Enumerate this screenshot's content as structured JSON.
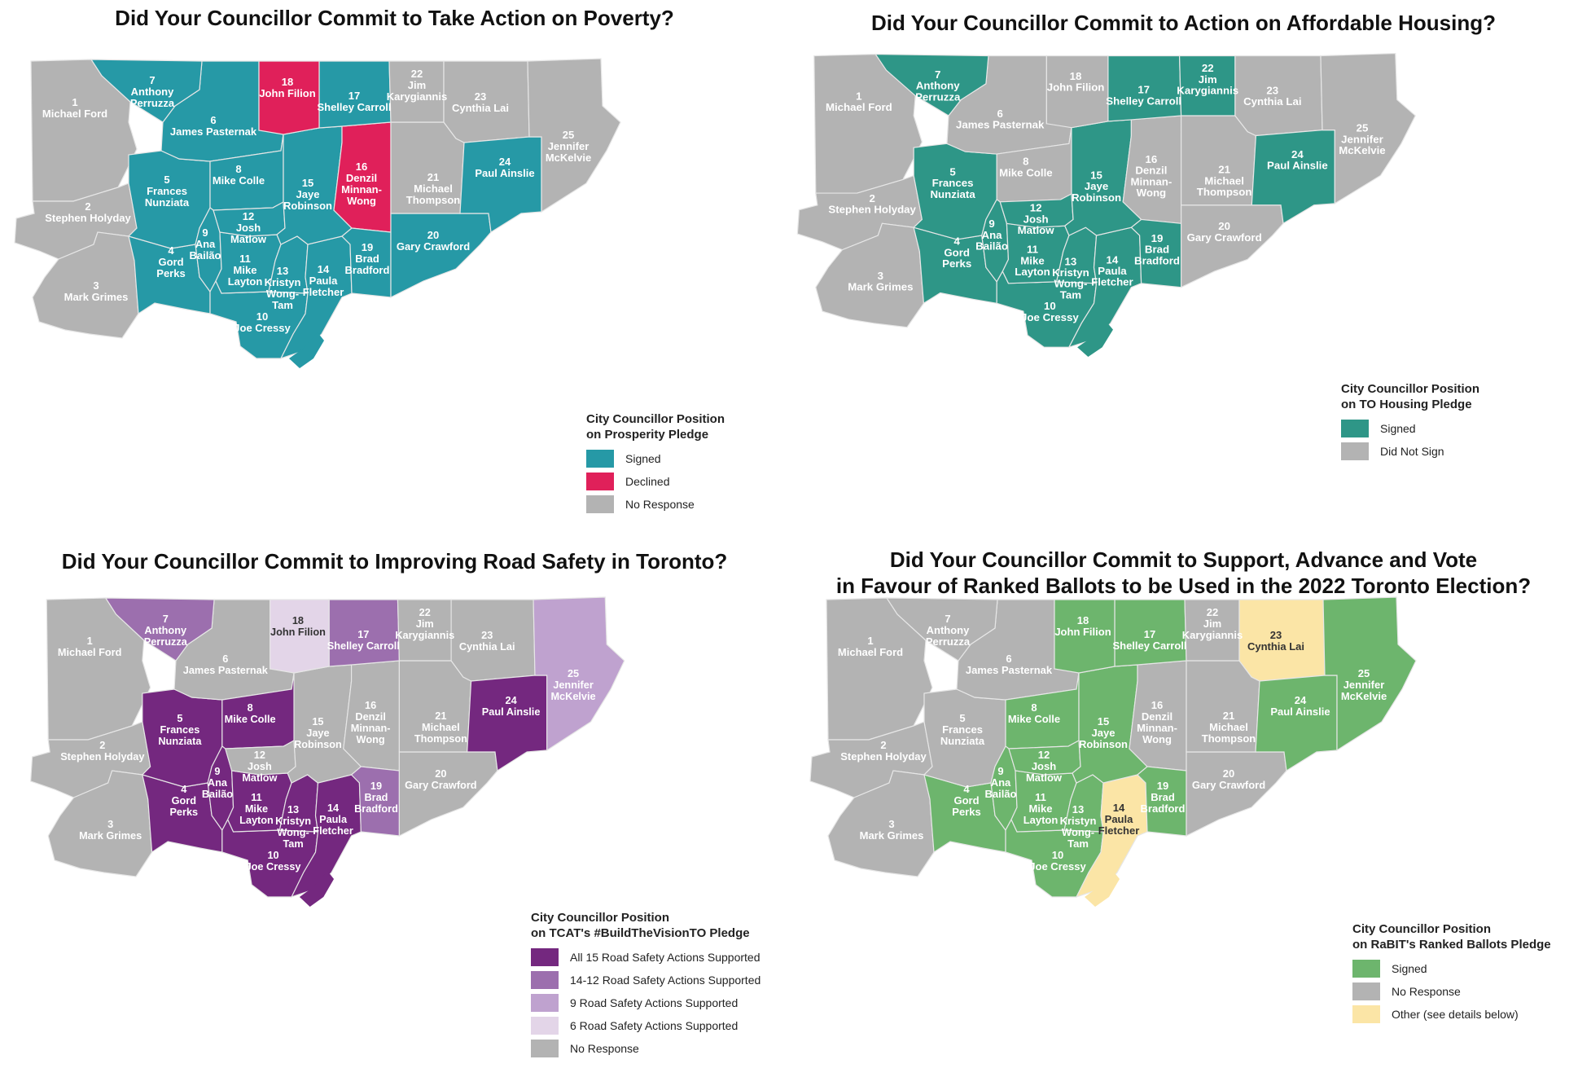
{
  "colors": {
    "grey": "#b3b3b3",
    "border": "#d8d8d8"
  },
  "wards": {
    "w1": {
      "num": "1",
      "name": "Michael Ford"
    },
    "w2": {
      "num": "2",
      "name": "Stephen Holyday"
    },
    "w3": {
      "num": "3",
      "name": "Mark Grimes"
    },
    "w4": {
      "num": "4",
      "name": "Gord Perks"
    },
    "w5": {
      "num": "5",
      "name": "Frances Nunziata"
    },
    "w6": {
      "num": "6",
      "name": "James Pasternak"
    },
    "w7": {
      "num": "7",
      "name": "Anthony Perruzza"
    },
    "w8": {
      "num": "8",
      "name": "Mike Colle"
    },
    "w9": {
      "num": "9",
      "name": "Ana Bailão"
    },
    "w10": {
      "num": "10",
      "name": "Joe Cressy"
    },
    "w11": {
      "num": "11",
      "name": "Mike Layton"
    },
    "w12": {
      "num": "12",
      "name": "Josh Matlow"
    },
    "w13": {
      "num": "13",
      "name": "Kristyn Wong-Tam"
    },
    "w14": {
      "num": "14",
      "name": "Paula Fletcher"
    },
    "w15": {
      "num": "15",
      "name": "Jaye Robinson"
    },
    "w16": {
      "num": "16",
      "name": "Denzil Minnan-Wong"
    },
    "w17": {
      "num": "17",
      "name": "Shelley Carroll"
    },
    "w18": {
      "num": "18",
      "name": "John Filion"
    },
    "w19": {
      "num": "19",
      "name": "Brad Bradford"
    },
    "w20": {
      "num": "20",
      "name": "Gary Crawford"
    },
    "w21": {
      "num": "21",
      "name": "Michael Thompson"
    },
    "w22": {
      "num": "22",
      "name": "Jim Karygiannis"
    },
    "w23": {
      "num": "23",
      "name": "Cynthia Lai"
    },
    "w24": {
      "num": "24",
      "name": "Paul Ainslie"
    },
    "w25": {
      "num": "25",
      "name": "Jennifer McKelvie"
    }
  },
  "panels": [
    {
      "id": "poverty",
      "title_lines": [
        "Did Your Councillor Commit to Take Action on Poverty?"
      ],
      "legend": {
        "title_lines": [
          "City Councillor Position",
          "on Prosperity Pledge"
        ],
        "items": [
          {
            "label": "Signed",
            "color": "#2699a6"
          },
          {
            "label": "Declined",
            "color": "#e0205a"
          },
          {
            "label": "No Response",
            "color": "#b3b3b3"
          }
        ]
      },
      "ward_status": {
        "w1": 2,
        "w2": 2,
        "w3": 2,
        "w4": 0,
        "w5": 0,
        "w6": 0,
        "w7": 0,
        "w8": 0,
        "w9": 0,
        "w10": 0,
        "w11": 0,
        "w12": 0,
        "w13": 0,
        "w14": 0,
        "w15": 0,
        "w16": 1,
        "w17": 0,
        "w18": 1,
        "w19": 0,
        "w20": 0,
        "w21": 2,
        "w22": 2,
        "w23": 2,
        "w24": 0,
        "w25": 2
      }
    },
    {
      "id": "housing",
      "title_lines": [
        "Did Your Councillor Commit to Action on Affordable Housing?"
      ],
      "legend": {
        "title_lines": [
          "City Councillor Position",
          "on TO Housing Pledge"
        ],
        "items": [
          {
            "label": "Signed",
            "color": "#2e9687"
          },
          {
            "label": "Did Not Sign",
            "color": "#b3b3b3"
          }
        ]
      },
      "ward_status": {
        "w1": 1,
        "w2": 1,
        "w3": 1,
        "w4": 0,
        "w5": 0,
        "w6": 1,
        "w7": 0,
        "w8": 1,
        "w9": 0,
        "w10": 0,
        "w11": 0,
        "w12": 0,
        "w13": 0,
        "w14": 0,
        "w15": 0,
        "w16": 1,
        "w17": 0,
        "w18": 1,
        "w19": 0,
        "w20": 1,
        "w21": 1,
        "w22": 0,
        "w23": 1,
        "w24": 0,
        "w25": 1
      }
    },
    {
      "id": "road",
      "title_lines": [
        "Did Your Councillor Commit to Improving Road Safety in Toronto?"
      ],
      "legend": {
        "title_lines": [
          "City Councillor Position",
          "on TCAT's #BuildTheVisionTO Pledge"
        ],
        "items": [
          {
            "label": "All 15 Road Safety Actions Supported",
            "color": "#74287f"
          },
          {
            "label": "14-12 Road Safety Actions Supported",
            "color": "#9c6fae"
          },
          {
            "label": "9 Road Safety Actions Supported",
            "color": "#bfa2cf"
          },
          {
            "label": "6 Road Safety Actions Supported",
            "color": "#e3d5e8"
          },
          {
            "label": "No Response",
            "color": "#b3b3b3"
          }
        ]
      },
      "ward_status": {
        "w1": 4,
        "w2": 4,
        "w3": 4,
        "w4": 0,
        "w5": 0,
        "w6": 4,
        "w7": 1,
        "w8": 0,
        "w9": 0,
        "w10": 0,
        "w11": 0,
        "w12": 4,
        "w13": 0,
        "w14": 0,
        "w15": 4,
        "w16": 4,
        "w17": 1,
        "w18": 3,
        "w19": 1,
        "w20": 4,
        "w21": 4,
        "w22": 4,
        "w23": 4,
        "w24": 0,
        "w25": 2
      }
    },
    {
      "id": "ranked",
      "title_lines": [
        "Did Your Councillor Commit to Support, Advance and Vote",
        "in Favour of Ranked Ballots to be Used in the 2022 Toronto Election?"
      ],
      "legend": {
        "title_lines": [
          "City Councillor Position",
          "on RaBIT's Ranked Ballots Pledge"
        ],
        "items": [
          {
            "label": "Signed",
            "color": "#6db56d"
          },
          {
            "label": "No Response",
            "color": "#b3b3b3"
          },
          {
            "label": "Other (see details below)",
            "color": "#fbe5a6"
          }
        ]
      },
      "ward_status": {
        "w1": 1,
        "w2": 1,
        "w3": 1,
        "w4": 0,
        "w5": 1,
        "w6": 1,
        "w7": 1,
        "w8": 0,
        "w9": 0,
        "w10": 0,
        "w11": 0,
        "w12": 0,
        "w13": 0,
        "w14": 2,
        "w15": 0,
        "w16": 1,
        "w17": 0,
        "w18": 0,
        "w19": 0,
        "w20": 1,
        "w21": 1,
        "w22": 1,
        "w23": 2,
        "w24": 0,
        "w25": 0
      }
    }
  ]
}
